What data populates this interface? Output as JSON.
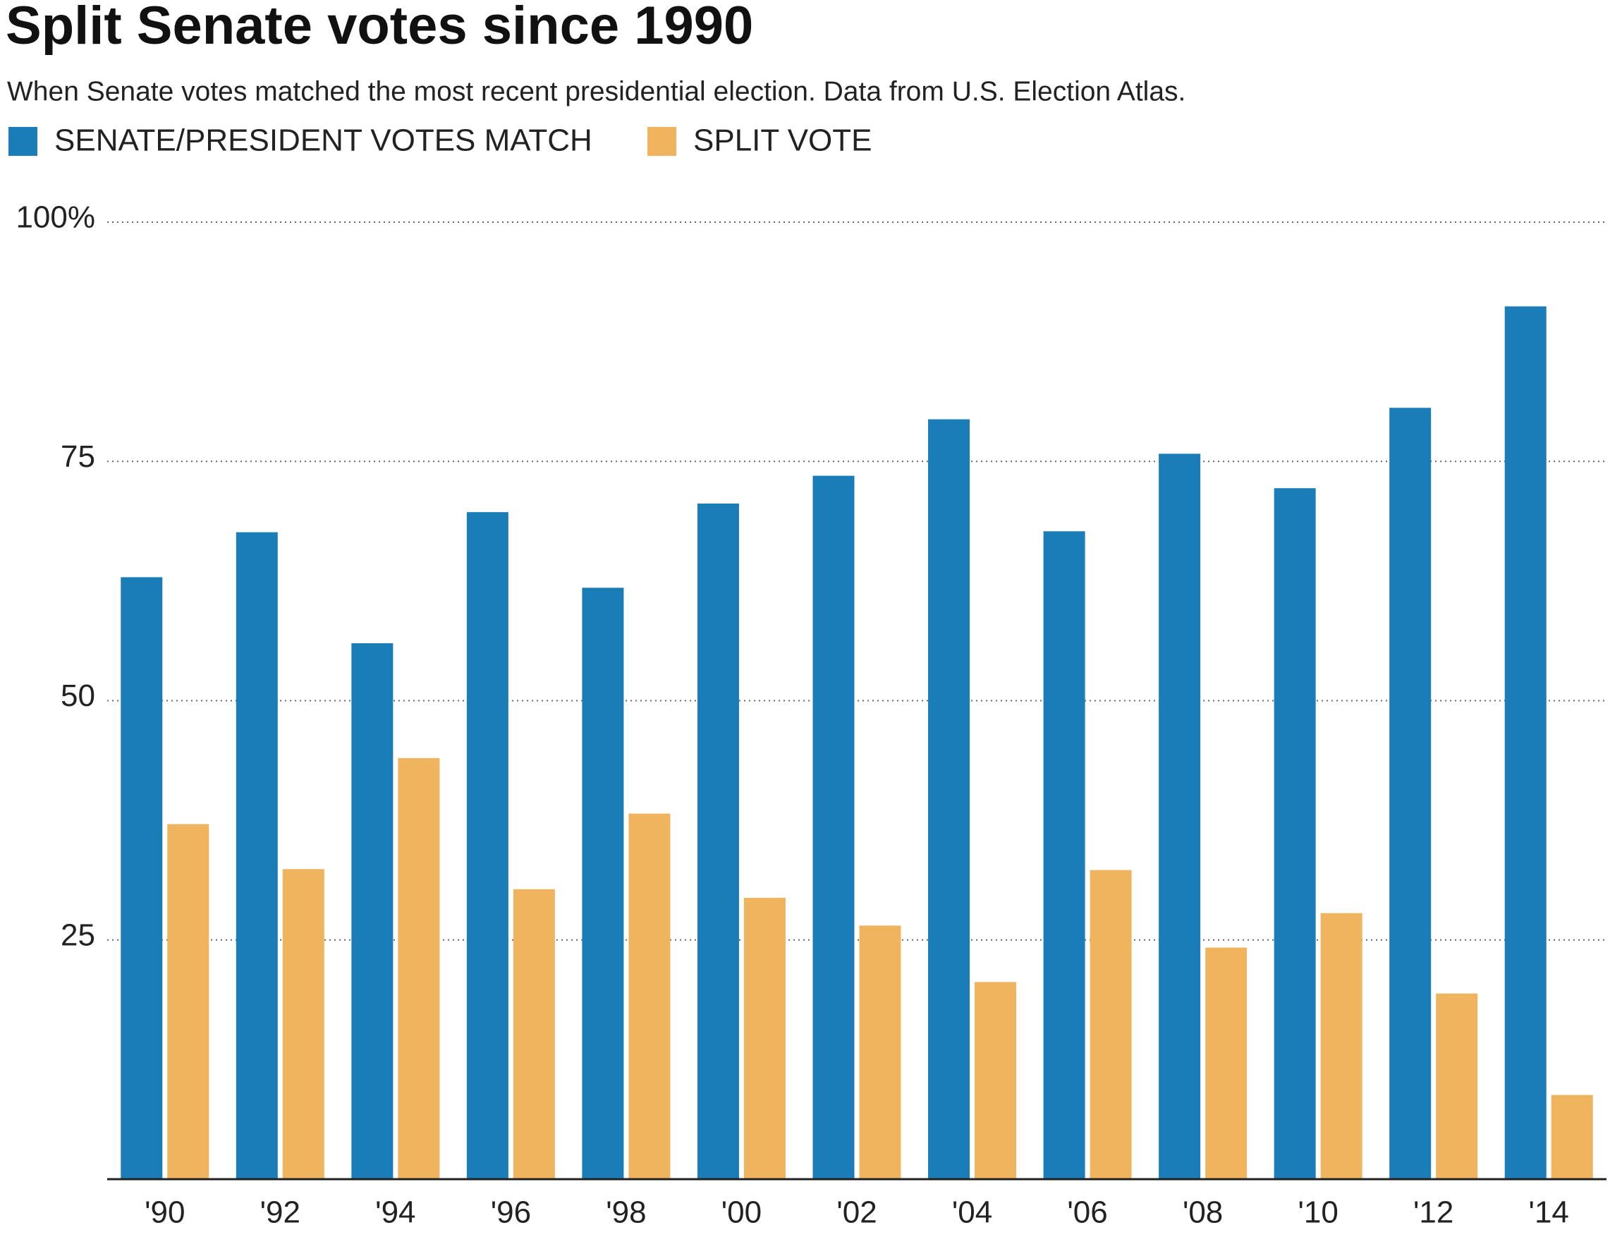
{
  "chart_data": {
    "type": "bar",
    "title": "Split Senate votes since 1990",
    "subtitle": "When Senate votes matched the most recent presidential election. Data from U.S. Election Atlas.",
    "categories": [
      "'90",
      "'92",
      "'94",
      "'96",
      "'98",
      "'00",
      "'02",
      "'04",
      "'06",
      "'08",
      "'10",
      "'12",
      "'14"
    ],
    "series": [
      {
        "name": "SENATE/PRESIDENT VOTES MATCH",
        "color": "#1a7db8",
        "values": [
          62.9,
          67.6,
          56.0,
          69.7,
          61.8,
          70.6,
          73.5,
          79.4,
          67.7,
          75.8,
          72.2,
          80.6,
          91.2
        ]
      },
      {
        "name": "SPLIT VOTE",
        "color": "#f0b45f",
        "values": [
          37.1,
          32.4,
          44.0,
          30.3,
          38.2,
          29.4,
          26.5,
          20.6,
          32.3,
          24.2,
          27.8,
          19.4,
          8.8
        ]
      }
    ],
    "ylim": [
      0,
      100
    ],
    "yticks": [
      25,
      50,
      75,
      {
        "value": 100,
        "label": "100%"
      }
    ],
    "grid": true
  }
}
